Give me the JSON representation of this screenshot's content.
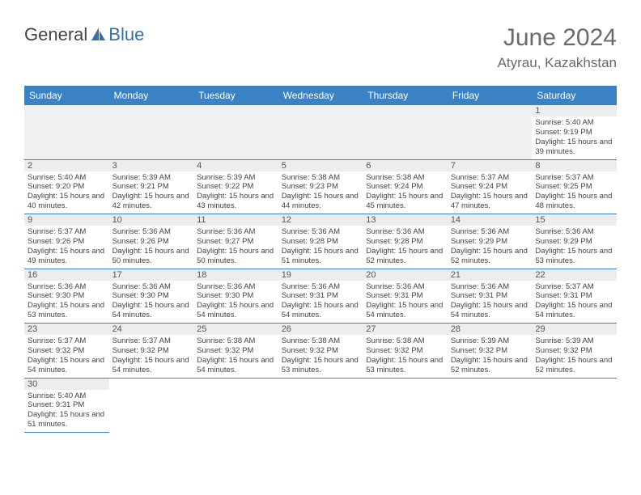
{
  "brand": {
    "part1": "General",
    "part2": "Blue"
  },
  "title": "June 2024",
  "location": "Atyrau, Kazakhstan",
  "colors": {
    "header_bg": "#3b82c4",
    "header_text": "#ffffff",
    "cell_border": "#3b82c4",
    "daynum_bg": "#ededed",
    "text": "#444444",
    "title_text": "#6a6a6a"
  },
  "weekdays": [
    "Sunday",
    "Monday",
    "Tuesday",
    "Wednesday",
    "Thursday",
    "Friday",
    "Saturday"
  ],
  "leading_blanks": 6,
  "days": [
    {
      "n": 1,
      "sr": "5:40 AM",
      "ss": "9:19 PM",
      "dl": "15 hours and 39 minutes."
    },
    {
      "n": 2,
      "sr": "5:40 AM",
      "ss": "9:20 PM",
      "dl": "15 hours and 40 minutes."
    },
    {
      "n": 3,
      "sr": "5:39 AM",
      "ss": "9:21 PM",
      "dl": "15 hours and 42 minutes."
    },
    {
      "n": 4,
      "sr": "5:39 AM",
      "ss": "9:22 PM",
      "dl": "15 hours and 43 minutes."
    },
    {
      "n": 5,
      "sr": "5:38 AM",
      "ss": "9:23 PM",
      "dl": "15 hours and 44 minutes."
    },
    {
      "n": 6,
      "sr": "5:38 AM",
      "ss": "9:24 PM",
      "dl": "15 hours and 45 minutes."
    },
    {
      "n": 7,
      "sr": "5:37 AM",
      "ss": "9:24 PM",
      "dl": "15 hours and 47 minutes."
    },
    {
      "n": 8,
      "sr": "5:37 AM",
      "ss": "9:25 PM",
      "dl": "15 hours and 48 minutes."
    },
    {
      "n": 9,
      "sr": "5:37 AM",
      "ss": "9:26 PM",
      "dl": "15 hours and 49 minutes."
    },
    {
      "n": 10,
      "sr": "5:36 AM",
      "ss": "9:26 PM",
      "dl": "15 hours and 50 minutes."
    },
    {
      "n": 11,
      "sr": "5:36 AM",
      "ss": "9:27 PM",
      "dl": "15 hours and 50 minutes."
    },
    {
      "n": 12,
      "sr": "5:36 AM",
      "ss": "9:28 PM",
      "dl": "15 hours and 51 minutes."
    },
    {
      "n": 13,
      "sr": "5:36 AM",
      "ss": "9:28 PM",
      "dl": "15 hours and 52 minutes."
    },
    {
      "n": 14,
      "sr": "5:36 AM",
      "ss": "9:29 PM",
      "dl": "15 hours and 52 minutes."
    },
    {
      "n": 15,
      "sr": "5:36 AM",
      "ss": "9:29 PM",
      "dl": "15 hours and 53 minutes."
    },
    {
      "n": 16,
      "sr": "5:36 AM",
      "ss": "9:30 PM",
      "dl": "15 hours and 53 minutes."
    },
    {
      "n": 17,
      "sr": "5:36 AM",
      "ss": "9:30 PM",
      "dl": "15 hours and 54 minutes."
    },
    {
      "n": 18,
      "sr": "5:36 AM",
      "ss": "9:30 PM",
      "dl": "15 hours and 54 minutes."
    },
    {
      "n": 19,
      "sr": "5:36 AM",
      "ss": "9:31 PM",
      "dl": "15 hours and 54 minutes."
    },
    {
      "n": 20,
      "sr": "5:36 AM",
      "ss": "9:31 PM",
      "dl": "15 hours and 54 minutes."
    },
    {
      "n": 21,
      "sr": "5:36 AM",
      "ss": "9:31 PM",
      "dl": "15 hours and 54 minutes."
    },
    {
      "n": 22,
      "sr": "5:37 AM",
      "ss": "9:31 PM",
      "dl": "15 hours and 54 minutes."
    },
    {
      "n": 23,
      "sr": "5:37 AM",
      "ss": "9:32 PM",
      "dl": "15 hours and 54 minutes."
    },
    {
      "n": 24,
      "sr": "5:37 AM",
      "ss": "9:32 PM",
      "dl": "15 hours and 54 minutes."
    },
    {
      "n": 25,
      "sr": "5:38 AM",
      "ss": "9:32 PM",
      "dl": "15 hours and 54 minutes."
    },
    {
      "n": 26,
      "sr": "5:38 AM",
      "ss": "9:32 PM",
      "dl": "15 hours and 53 minutes."
    },
    {
      "n": 27,
      "sr": "5:38 AM",
      "ss": "9:32 PM",
      "dl": "15 hours and 53 minutes."
    },
    {
      "n": 28,
      "sr": "5:39 AM",
      "ss": "9:32 PM",
      "dl": "15 hours and 52 minutes."
    },
    {
      "n": 29,
      "sr": "5:39 AM",
      "ss": "9:32 PM",
      "dl": "15 hours and 52 minutes."
    },
    {
      "n": 30,
      "sr": "5:40 AM",
      "ss": "9:31 PM",
      "dl": "15 hours and 51 minutes."
    }
  ],
  "labels": {
    "sunrise": "Sunrise:",
    "sunset": "Sunset:",
    "daylight": "Daylight:"
  }
}
